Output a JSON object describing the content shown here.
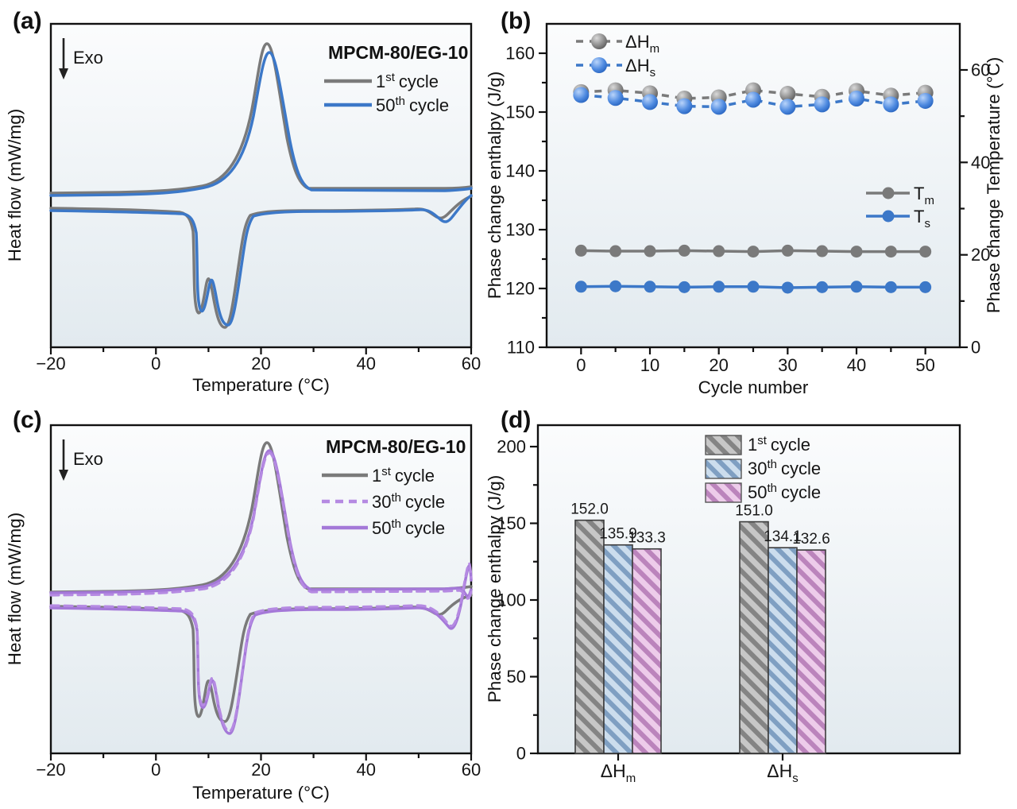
{
  "panels": {
    "a": {
      "label": "(a)",
      "exo_label": "Exo",
      "sample_label": "MPCM-80/EG-10",
      "x_title": "Temperature (°C)",
      "y_title": "Heat flow (mW/mg)",
      "x_tick_labels": [
        "−20",
        "0",
        "20",
        "40",
        "60"
      ],
      "legend": [
        {
          "num": "1",
          "sup": "st",
          "word": "cycle"
        },
        {
          "num": "50",
          "sup": "th",
          "word": "cycle"
        }
      ]
    },
    "b": {
      "label": "(b)",
      "x_title": "Cycle number",
      "y_left_title": "Phase change enthalpy (J/g)",
      "y_right_title": "Phase change Temperature (°C)",
      "x_tick_labels": [
        "0",
        "10",
        "20",
        "30",
        "40",
        "50"
      ],
      "y_left_tick_labels": [
        "110",
        "120",
        "130",
        "140",
        "150",
        "160"
      ],
      "y_right_tick_labels": [
        "0",
        "20",
        "40",
        "60"
      ],
      "legend_enthalpy": [
        {
          "main": "ΔH",
          "sub": "m"
        },
        {
          "main": "ΔH",
          "sub": "s"
        }
      ],
      "legend_temperature": [
        {
          "main": "T",
          "sub": "m"
        },
        {
          "main": "T",
          "sub": "s"
        }
      ]
    },
    "c": {
      "label": "(c)",
      "exo_label": "Exo",
      "sample_label": "MPCM-80/EG-10",
      "x_title": "Temperature (°C)",
      "y_title": "Heat flow (mW/mg)",
      "x_tick_labels": [
        "−20",
        "0",
        "20",
        "40",
        "60"
      ],
      "legend": [
        {
          "num": "1",
          "sup": "st",
          "word": "cycle"
        },
        {
          "num": "30",
          "sup": "th",
          "word": "cycle"
        },
        {
          "num": "50",
          "sup": "th",
          "word": "cycle"
        }
      ]
    },
    "d": {
      "label": "(d)",
      "y_title": "Phase change enthalpy (J/g)",
      "y_tick_labels": [
        "0",
        "50",
        "100",
        "150",
        "200"
      ],
      "x_categories": [
        {
          "main": "ΔH",
          "sub": "m"
        },
        {
          "main": "ΔH",
          "sub": "s"
        }
      ],
      "legend": [
        {
          "num": "1",
          "sup": "st",
          "word": "cycle"
        },
        {
          "num": "30",
          "sup": "th",
          "word": "cycle"
        },
        {
          "num": "50",
          "sup": "th",
          "word": "cycle"
        }
      ]
    }
  },
  "colors": {
    "gray_series": "#7a7a7a",
    "blue_series": "#3c78c8",
    "purple_series": "#a478d8",
    "bar_gray_base": "#c7c7c7",
    "bar_gray_stripe": "#848484",
    "bar_blue_base": "#ccdded",
    "bar_blue_stripe": "#7f9fc2",
    "bar_pink_base": "#edccea",
    "bar_pink_stripe": "#bb84bc",
    "plot_bg_top": "#fbfcfd",
    "plot_bg_bottom": "#e2eaef"
  },
  "chart_data": [
    {
      "id": "a",
      "type": "line",
      "title": "MPCM-80/EG-10",
      "xlabel": "Temperature (°C)",
      "ylabel": "Heat flow (mW/mg)",
      "xlim": [
        -20,
        60
      ],
      "exo_direction": "down",
      "series": [
        {
          "name": "1st cycle",
          "color": "#7a7a7a",
          "style": "solid"
        },
        {
          "name": "50th cycle",
          "color": "#3c78c8",
          "style": "solid"
        }
      ],
      "features": {
        "endothermic_melting_peak_C": 21,
        "exothermic_crystallization_peaks_C": [
          8,
          13
        ],
        "small_transition_near_C": 54
      }
    },
    {
      "id": "b",
      "type": "scatter",
      "xlabel": "Cycle number",
      "ylabel_left": "Phase change enthalpy (J/g)",
      "ylabel_right": "Phase change Temperature (°C)",
      "xlim": [
        -5,
        55
      ],
      "ylim_left": [
        110,
        160
      ],
      "ylim_right": [
        0,
        70
      ],
      "legend_position": [
        "upper left",
        "middle right"
      ],
      "x": [
        0,
        5,
        10,
        15,
        20,
        25,
        30,
        35,
        40,
        45,
        50
      ],
      "series": [
        {
          "key": "dHm",
          "name": "ΔHm",
          "axis": "left",
          "marker": "sphere",
          "color": "#7a7a7a",
          "values": [
            153.4,
            153.7,
            153.2,
            152.3,
            152.5,
            153.7,
            153.1,
            152.6,
            153.6,
            152.8,
            153.3
          ]
        },
        {
          "key": "dHs",
          "name": "ΔHs",
          "axis": "left",
          "marker": "sphere",
          "color": "#3c78c8",
          "values": [
            152.9,
            152.4,
            151.7,
            151.0,
            150.9,
            152.1,
            150.9,
            151.3,
            152.3,
            151.3,
            151.9
          ]
        },
        {
          "key": "Tm",
          "name": "Tm",
          "axis": "right",
          "marker": "dot",
          "color": "#7a7a7a",
          "values": [
            20.9,
            20.8,
            20.8,
            20.9,
            20.8,
            20.7,
            20.9,
            20.8,
            20.7,
            20.7,
            20.7
          ]
        },
        {
          "key": "Ts",
          "name": "Ts",
          "axis": "right",
          "marker": "dot",
          "color": "#3c78c8",
          "values": [
            13.1,
            13.2,
            13.1,
            13.0,
            13.1,
            13.1,
            12.9,
            13.0,
            13.1,
            13.0,
            13.0
          ]
        }
      ]
    },
    {
      "id": "c",
      "type": "line",
      "title": "MPCM-80/EG-10",
      "xlabel": "Temperature (°C)",
      "ylabel": "Heat flow (mW/mg)",
      "xlim": [
        -20,
        60
      ],
      "exo_direction": "down",
      "series": [
        {
          "name": "1st cycle",
          "color": "#7a7a7a",
          "style": "solid"
        },
        {
          "name": "30th cycle",
          "color": "#b58ae2",
          "style": "dashed"
        },
        {
          "name": "50th cycle",
          "color": "#a478d8",
          "style": "solid"
        }
      ],
      "features": {
        "endothermic_melting_peak_C": 21,
        "exothermic_crystallization_peaks_C": [
          8,
          13
        ],
        "small_transition_near_C": 55
      }
    },
    {
      "id": "d",
      "type": "bar",
      "ylabel": "Phase change enthalpy (J/g)",
      "ylim": [
        0,
        215
      ],
      "categories": [
        "ΔHm",
        "ΔHs"
      ],
      "series": [
        {
          "name": "1st cycle",
          "values": [
            152.0,
            151.0
          ],
          "labels": [
            "152.0",
            "151.0"
          ]
        },
        {
          "name": "30th cycle",
          "values": [
            135.9,
            134.1
          ],
          "labels": [
            "135.9",
            "134.1"
          ]
        },
        {
          "name": "50th cycle",
          "values": [
            133.3,
            132.6
          ],
          "labels": [
            "133.3",
            "132.6"
          ]
        }
      ]
    }
  ]
}
